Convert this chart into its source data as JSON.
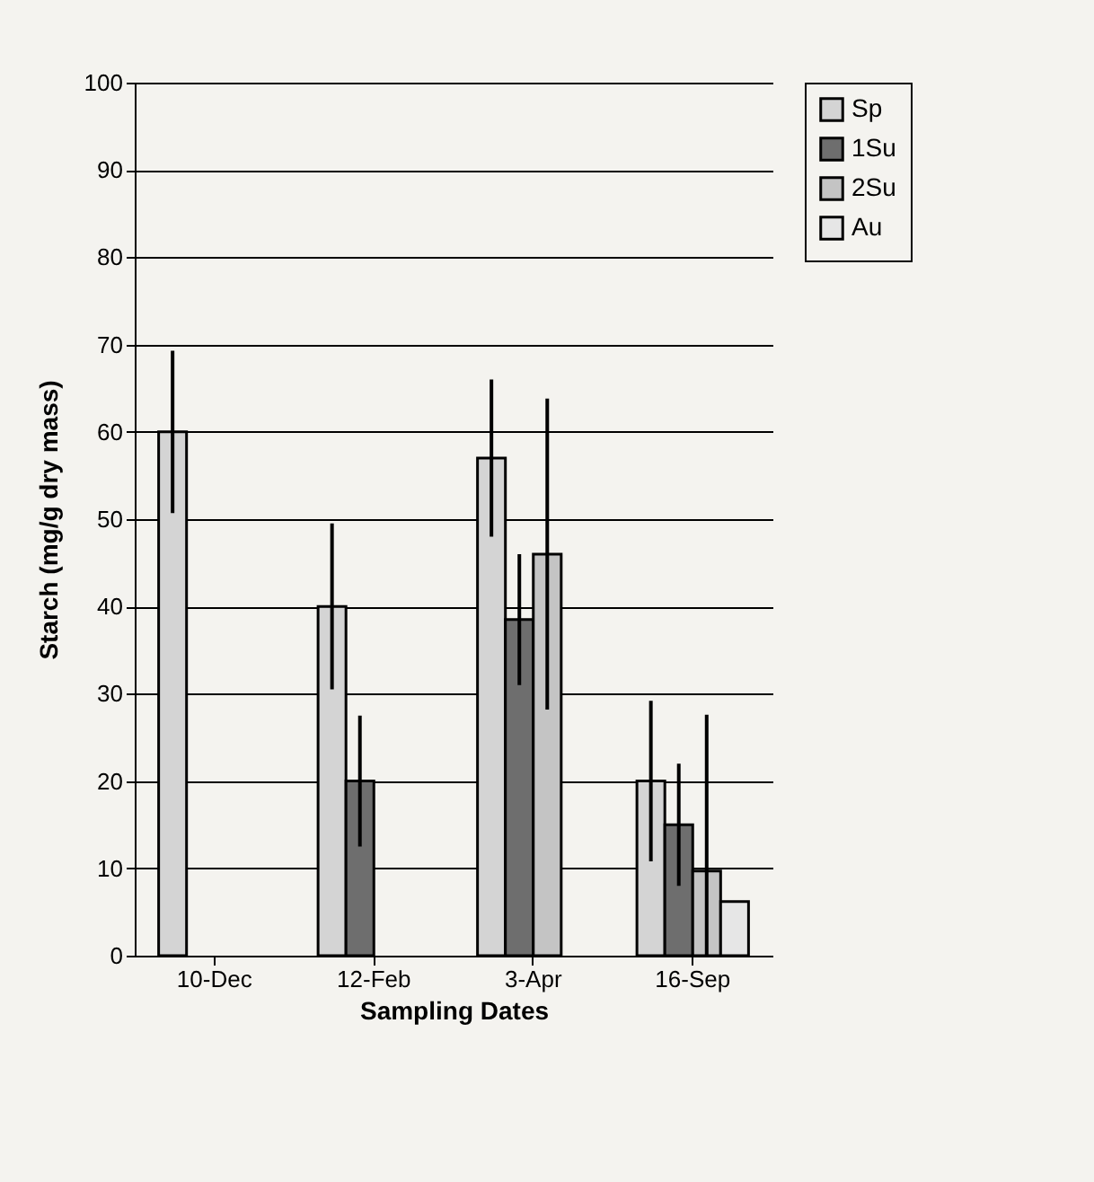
{
  "chart_data": {
    "type": "bar",
    "xlabel": "Sampling Dates",
    "ylabel": "Starch (mg/g dry mass)",
    "categories": [
      "10-Dec",
      "12-Feb",
      "3-Apr",
      "16-Sep"
    ],
    "series": [
      {
        "name": "Sp",
        "color": "#d4d4d4",
        "values": [
          60,
          40,
          57,
          20
        ],
        "errors": [
          9.3,
          9.5,
          9,
          9.2
        ]
      },
      {
        "name": "1Su",
        "color": "#6e6e6e",
        "values": [
          null,
          20,
          38.5,
          15
        ],
        "errors": [
          null,
          7.5,
          7.5,
          7
        ]
      },
      {
        "name": "2Su",
        "color": "#c4c4c4",
        "values": [
          null,
          null,
          46,
          9.7
        ],
        "errors": [
          null,
          null,
          17.8,
          [
            0,
            27.6
          ]
        ]
      },
      {
        "name": "Au",
        "color": "#e6e6e6",
        "values": [
          null,
          null,
          null,
          6.2
        ],
        "errors": [
          null,
          null,
          null,
          null
        ]
      }
    ],
    "ylim": [
      0,
      100
    ],
    "yticks": [
      0,
      10,
      20,
      30,
      40,
      50,
      60,
      70,
      80,
      90,
      100
    ],
    "grid": "y",
    "legend": "right"
  }
}
